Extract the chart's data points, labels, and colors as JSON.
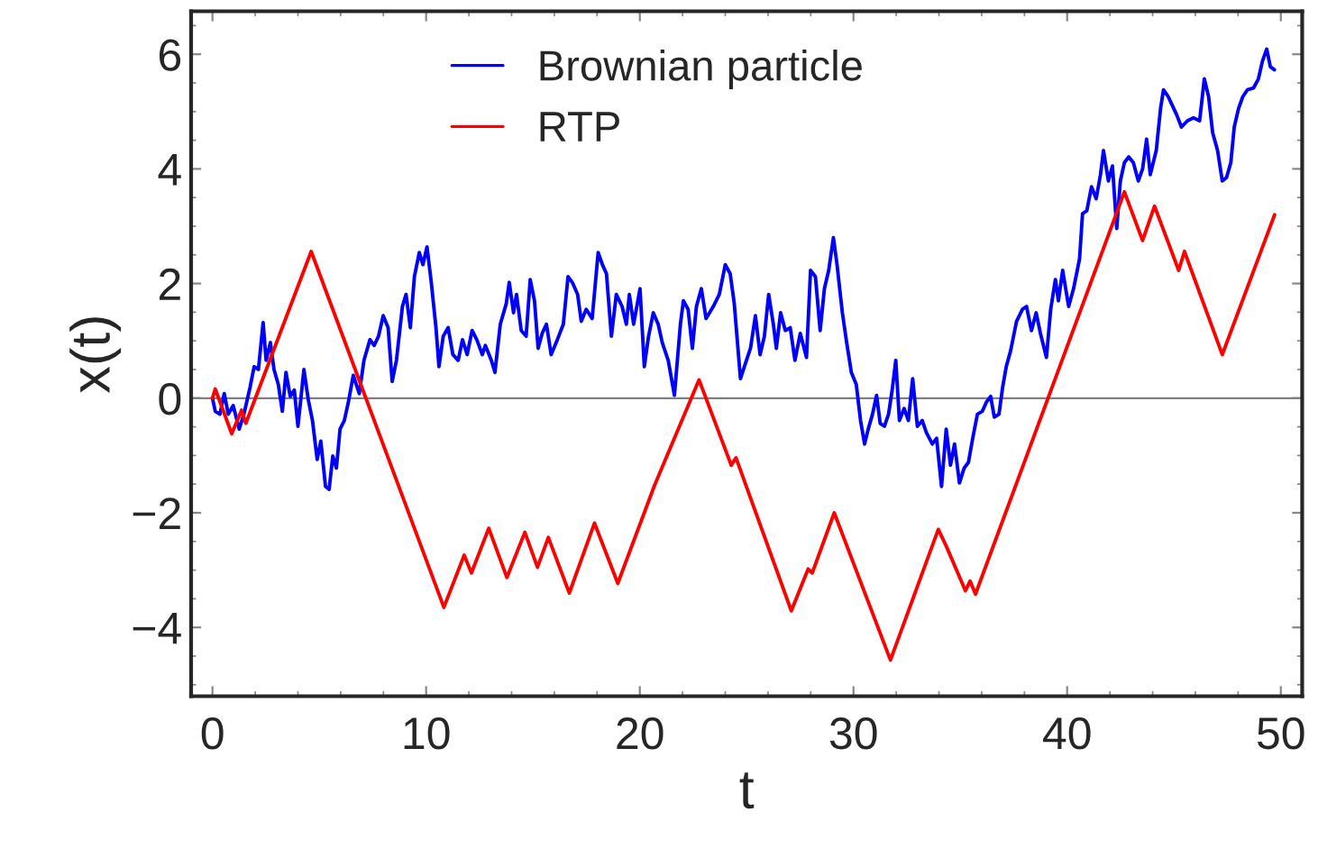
{
  "chart_data": {
    "type": "line",
    "xlabel": "t",
    "ylabel": "x(t)",
    "xlim": [
      -1,
      51
    ],
    "ylim": [
      -5.2,
      6.75
    ],
    "xticks": [
      0,
      10,
      20,
      30,
      40,
      50
    ],
    "yticks": [
      {
        "value": -4,
        "label": "−4"
      },
      {
        "value": -2,
        "label": "−2"
      },
      0,
      2,
      4,
      6
    ],
    "grid": false,
    "legend": "top",
    "marker": "none",
    "line_style": "solid",
    "ref_lines": [
      {
        "axis": "y",
        "value": 0,
        "color": "#808080"
      }
    ],
    "series": [
      {
        "name": "Brownian particle",
        "color": "#0000ff",
        "x": [
          0,
          0.13,
          0.35,
          0.55,
          0.74,
          0.97,
          1.25,
          1.47,
          1.76,
          1.95,
          2.15,
          2.37,
          2.51,
          2.71,
          2.88,
          3.08,
          3.27,
          3.44,
          3.64,
          3.83,
          4.0,
          4.28,
          4.48,
          4.68,
          4.9,
          5.07,
          5.29,
          5.46,
          5.63,
          5.8,
          5.97,
          6.17,
          6.36,
          6.59,
          6.87,
          7.09,
          7.37,
          7.57,
          7.77,
          7.99,
          8.22,
          8.41,
          8.61,
          8.89,
          9.06,
          9.26,
          9.45,
          9.68,
          9.85,
          10.04,
          10.24,
          10.46,
          10.6,
          10.8,
          11.03,
          11.25,
          11.5,
          11.7,
          11.92,
          12.15,
          12.37,
          12.63,
          12.77,
          13.05,
          13.22,
          13.47,
          13.75,
          13.89,
          14.09,
          14.23,
          14.45,
          14.68,
          14.87,
          15.07,
          15.24,
          15.43,
          15.63,
          15.85,
          16.14,
          16.42,
          16.64,
          16.84,
          17.09,
          17.26,
          17.49,
          17.77,
          18.05,
          18.25,
          18.44,
          18.67,
          18.9,
          19.17,
          19.37,
          19.51,
          19.71,
          20.01,
          20.21,
          20.41,
          20.63,
          20.86,
          21.05,
          21.33,
          21.62,
          21.9,
          22.04,
          22.26,
          22.46,
          22.65,
          22.88,
          23.1,
          23.44,
          23.72,
          24.0,
          24.23,
          24.42,
          24.71,
          24.99,
          25.18,
          25.41,
          25.63,
          25.83,
          26.03,
          26.25,
          26.39,
          26.59,
          26.81,
          27.04,
          27.26,
          27.51,
          27.8,
          27.99,
          28.22,
          28.44,
          28.64,
          28.84,
          29.06,
          29.23,
          29.48,
          29.68,
          29.9,
          30.13,
          30.33,
          30.52,
          30.69,
          30.89,
          31.08,
          31.25,
          31.45,
          31.64,
          31.81,
          31.98,
          32.15,
          32.37,
          32.57,
          32.77,
          32.99,
          33.22,
          33.41,
          33.69,
          33.89,
          34.12,
          34.34,
          34.54,
          34.73,
          34.96,
          35.18,
          35.38,
          35.58,
          35.8,
          36.03,
          36.22,
          36.42,
          36.59,
          36.81,
          36.98,
          37.15,
          37.35,
          37.63,
          37.91,
          38.1,
          38.33,
          38.55,
          38.75,
          39.03,
          39.23,
          39.45,
          39.59,
          39.79,
          40.07,
          40.3,
          40.58,
          40.72,
          40.92,
          41.14,
          41.36,
          41.56,
          41.7,
          41.93,
          42.12,
          42.32,
          42.49,
          42.68,
          42.88,
          43.1,
          43.33,
          43.53,
          43.72,
          43.89,
          44.17,
          44.37,
          44.51,
          44.73,
          44.93,
          45.13,
          45.35,
          45.63,
          45.91,
          46.2,
          46.42,
          46.62,
          46.81,
          47.04,
          47.26,
          47.46,
          47.66,
          47.82,
          48.02,
          48.22,
          48.44,
          48.72,
          48.95,
          49.14,
          49.34,
          49.51,
          49.7
        ],
        "values": [
          0,
          -0.23,
          -0.28,
          0.08,
          -0.28,
          -0.13,
          -0.54,
          -0.28,
          0.19,
          0.55,
          0.5,
          1.32,
          0.66,
          0.97,
          0.5,
          0.24,
          -0.23,
          0.45,
          0.03,
          0.14,
          -0.49,
          0.5,
          -0.02,
          -0.39,
          -1.07,
          -0.75,
          -1.54,
          -1.59,
          -1.01,
          -1.22,
          -0.54,
          -0.39,
          -0.07,
          0.4,
          0.08,
          0.66,
          1.02,
          0.92,
          1.08,
          1.44,
          1.23,
          0.29,
          0.66,
          1.6,
          1.81,
          1.23,
          2.12,
          2.54,
          2.33,
          2.64,
          2.02,
          1.23,
          0.55,
          1.08,
          1.23,
          0.76,
          0.66,
          1.02,
          0.76,
          1.18,
          1.02,
          0.76,
          0.92,
          0.66,
          0.45,
          1.29,
          1.65,
          2.02,
          1.49,
          1.81,
          1.18,
          1.08,
          2.07,
          1.7,
          0.87,
          1.13,
          1.29,
          0.76,
          1.02,
          1.29,
          2.12,
          2.02,
          1.81,
          1.34,
          1.55,
          1.39,
          2.54,
          2.33,
          2.17,
          1.08,
          1.81,
          1.6,
          1.29,
          1.81,
          1.29,
          1.91,
          0.55,
          1.08,
          1.49,
          1.29,
          0.97,
          0.66,
          0.05,
          1.29,
          1.7,
          1.55,
          0.87,
          1.6,
          1.91,
          1.39,
          1.6,
          1.81,
          2.33,
          2.17,
          1.65,
          0.34,
          0.66,
          0.87,
          1.44,
          0.76,
          1.08,
          1.81,
          1.29,
          0.87,
          1.49,
          1.18,
          1.23,
          0.66,
          1.13,
          0.71,
          2.23,
          2.12,
          1.18,
          1.91,
          2.23,
          2.8,
          2.33,
          1.49,
          0.97,
          0.45,
          0.24,
          -0.39,
          -0.8,
          -0.54,
          -0.28,
          0.05,
          -0.44,
          -0.49,
          -0.28,
          0.14,
          0.66,
          -0.39,
          -0.18,
          -0.39,
          0.34,
          -0.49,
          -0.39,
          -0.6,
          -0.8,
          -0.7,
          -1.54,
          -0.54,
          -1.17,
          -0.8,
          -1.48,
          -1.22,
          -1.12,
          -0.7,
          -0.28,
          -0.23,
          -0.07,
          0.03,
          -0.33,
          -0.28,
          0.19,
          0.55,
          0.82,
          1.34,
          1.55,
          1.6,
          1.18,
          1.49,
          1.13,
          0.71,
          1.55,
          2.07,
          1.7,
          2.23,
          1.6,
          1.91,
          2.43,
          3.22,
          3.27,
          3.69,
          3.48,
          3.9,
          4.32,
          3.79,
          4.05,
          2.96,
          3.79,
          4.11,
          4.21,
          4.11,
          3.79,
          4.0,
          4.52,
          3.9,
          4.32,
          5.05,
          5.38,
          5.26,
          5.1,
          4.94,
          4.73,
          4.84,
          4.89,
          4.84,
          5.57,
          5.26,
          4.63,
          4.32,
          3.79,
          3.85,
          4.11,
          4.73,
          5.05,
          5.26,
          5.38,
          5.41,
          5.57,
          5.88,
          6.09,
          5.78,
          5.73
        ]
      },
      {
        "name": "RTP",
        "color": "#ff0000",
        "x": [
          0,
          0.13,
          0.9,
          1.36,
          1.56,
          4.62,
          10.83,
          11.78,
          12.12,
          12.93,
          13.78,
          14.62,
          15.21,
          15.72,
          16.7,
          17.88,
          18.97,
          20.69,
          22.77,
          24.28,
          24.5,
          27.09,
          27.88,
          28.07,
          29.1,
          31.73,
          33.97,
          34.34,
          35.24,
          35.46,
          35.71,
          42.68,
          43.53,
          44.09,
          45.22,
          45.49,
          47.26,
          49.71
        ],
        "values": [
          0,
          0.16,
          -0.62,
          -0.21,
          -0.44,
          2.56,
          -3.65,
          -2.74,
          -3.05,
          -2.27,
          -3.13,
          -2.34,
          -2.95,
          -2.43,
          -3.4,
          -2.18,
          -3.23,
          -1.52,
          0.32,
          -1.17,
          -1.04,
          -3.71,
          -2.98,
          -3.05,
          -2.0,
          -4.57,
          -2.29,
          -2.58,
          -3.36,
          -3.19,
          -3.42,
          3.6,
          2.75,
          3.35,
          2.23,
          2.56,
          0.76,
          3.2
        ]
      }
    ]
  }
}
